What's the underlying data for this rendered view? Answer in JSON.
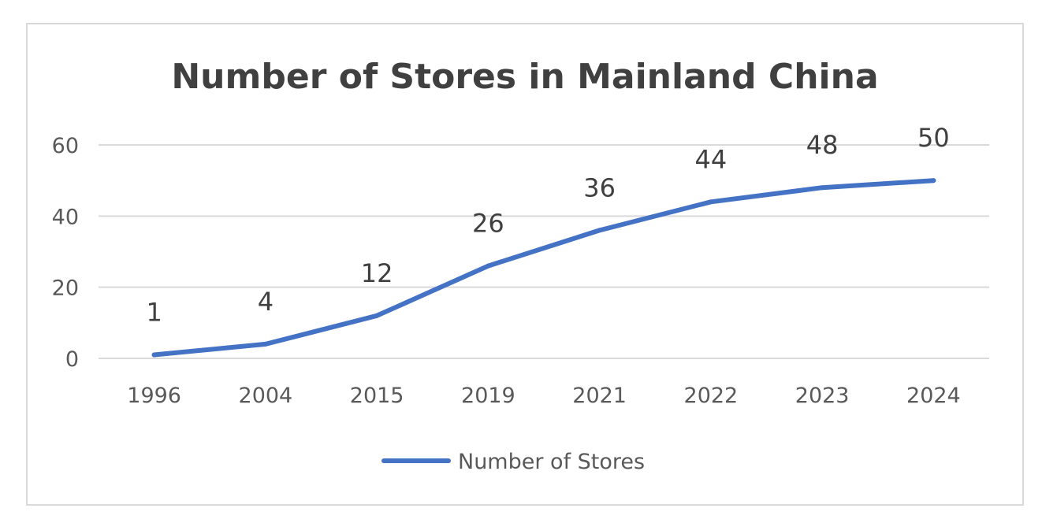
{
  "chart_data": {
    "type": "line",
    "title": "Number of  Stores in Mainland China",
    "categories": [
      "1996",
      "2004",
      "2015",
      "2019",
      "2021",
      "2022",
      "2023",
      "2024"
    ],
    "series": [
      {
        "name": "Number of Stores",
        "values": [
          1,
          4,
          12,
          26,
          36,
          44,
          48,
          50
        ],
        "color": "#4472c4"
      }
    ],
    "ylim": [
      0,
      60
    ],
    "yticks": [
      "0",
      "20",
      "40",
      "60"
    ],
    "xlabel": "",
    "ylabel": "",
    "grid": true,
    "legend": "bottom"
  },
  "colors": {
    "line": "#4472c4",
    "grid": "#d9d9d9",
    "frame": "#d9d9d9"
  }
}
